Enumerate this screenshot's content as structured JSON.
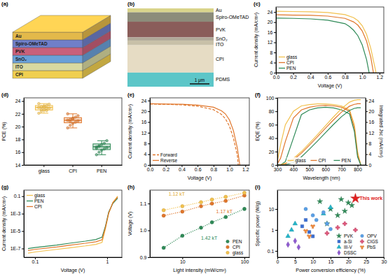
{
  "chart_data": [
    {
      "type": "diagram",
      "title": "(a)",
      "layers": [
        "Au",
        "Spiro-OMeTAD",
        "PVK",
        "SnO₂",
        "ITO",
        "CPI"
      ],
      "colors": [
        "#e3b94a",
        "#6f7fc9",
        "#c9607a",
        "#6aa0d8",
        "#d9d9a0",
        "#f0cf50"
      ]
    },
    {
      "type": "image",
      "title": "(b)",
      "layers": [
        "Au",
        "Spiro-OMeTAD",
        "PVK",
        "SnO₂",
        "ITO",
        "CPI",
        "PDMS"
      ],
      "colors": [
        "#d9d48a",
        "#8c8c7a",
        "#8a5d5a",
        "#b0a898",
        "#c8c0a8",
        "#e6dcc4",
        "#5cc6c8"
      ],
      "scale_bar": "1 μm"
    },
    {
      "type": "line",
      "title": "(c)",
      "xlabel": "Voltage (V)",
      "ylabel": "Current density (mA/cm²)",
      "xlim": [
        0,
        1.25
      ],
      "ylim": [
        0,
        26
      ],
      "xticks": [
        {
          "value": 0,
          "label": "0.0"
        },
        0.2,
        0.4,
        0.6,
        0.8,
        {
          "value": 1,
          "label": "1.0"
        },
        1.2
      ],
      "yticks": [
        0,
        4,
        8,
        12,
        16,
        20,
        24
      ],
      "legend": "lower left",
      "series": [
        {
          "name": "glass",
          "color": "#f2c14e",
          "x": [
            0,
            0.2,
            0.4,
            0.6,
            0.8,
            0.9,
            0.95,
            1.0,
            1.05,
            1.1,
            1.16
          ],
          "values": [
            24.3,
            24.2,
            24.1,
            23.8,
            23.0,
            21.8,
            20.6,
            18.6,
            15.2,
            9.5,
            0
          ]
        },
        {
          "name": "CPI",
          "color": "#e0762b",
          "x": [
            0,
            0.2,
            0.4,
            0.6,
            0.8,
            0.9,
            0.95,
            1.0,
            1.05,
            1.1,
            1.13
          ],
          "values": [
            22.9,
            22.8,
            22.7,
            22.4,
            21.5,
            20.1,
            18.8,
            16.5,
            12.5,
            6.0,
            0
          ]
        },
        {
          "name": "PEN",
          "color": "#2f8a57",
          "x": [
            0,
            0.2,
            0.4,
            0.6,
            0.8,
            0.85,
            0.9,
            0.95,
            1.0,
            1.05,
            1.08
          ],
          "values": [
            21.6,
            21.5,
            21.3,
            20.8,
            19.4,
            18.3,
            16.8,
            14.6,
            11.0,
            5.2,
            0
          ]
        }
      ]
    },
    {
      "type": "box",
      "title": "(d)",
      "ylabel": "PCE (%)",
      "categories": [
        "glass",
        "CPI",
        "PEN"
      ],
      "colors": [
        "#f2c14e",
        "#e0762b",
        "#2f8a57"
      ],
      "ylim": [
        14,
        24.5
      ],
      "yticks": [
        14,
        16,
        18,
        20,
        22,
        24
      ],
      "values": [
        [
          22.1,
          22.4,
          22.6,
          22.8,
          22.9,
          23.0,
          23.1,
          23.2,
          23.3,
          23.5,
          23.6,
          22.7,
          23.0,
          22.5
        ],
        [
          19.8,
          20.2,
          20.5,
          20.7,
          20.9,
          21.0,
          21.1,
          21.3,
          21.5,
          21.7,
          22.0,
          20.8,
          21.2
        ],
        [
          15.6,
          16.0,
          16.3,
          16.5,
          16.7,
          16.8,
          17.0,
          17.2,
          17.4,
          17.8,
          16.6,
          16.9
        ]
      ],
      "stats": [
        {
          "min": 22.1,
          "q1": 22.6,
          "median": 23.0,
          "q3": 23.3,
          "max": 23.6
        },
        {
          "min": 19.8,
          "q1": 20.6,
          "median": 21.0,
          "q3": 21.4,
          "max": 22.0
        },
        {
          "min": 15.6,
          "q1": 16.4,
          "median": 16.85,
          "q3": 17.3,
          "max": 17.8
        }
      ]
    },
    {
      "type": "line",
      "title": "(e)",
      "xlabel": "Voltage (V)",
      "ylabel": "Current density (mA/cm²)",
      "xlim": [
        0,
        1.25
      ],
      "ylim": [
        0,
        25
      ],
      "xticks": [
        {
          "value": 0,
          "label": "0.0"
        },
        0.2,
        0.4,
        0.6,
        0.8,
        {
          "value": 1,
          "label": "1.0"
        },
        1.2
      ],
      "yticks": [
        0,
        4,
        8,
        12,
        16,
        20,
        24
      ],
      "legend": "lower left",
      "series": [
        {
          "name": "Forward",
          "color": "#e0762b",
          "line_style": "dashed",
          "x": [
            0,
            0.2,
            0.4,
            0.6,
            0.8,
            0.9,
            0.95,
            1.0,
            1.05,
            1.1,
            1.11
          ],
          "values": [
            22.7,
            22.6,
            22.4,
            21.9,
            20.6,
            18.8,
            17.2,
            14.5,
            10.0,
            3.5,
            0
          ]
        },
        {
          "name": "Reverse",
          "color": "#e0762b",
          "line_style": "solid",
          "x": [
            0,
            0.2,
            0.4,
            0.6,
            0.8,
            0.9,
            0.95,
            1.0,
            1.05,
            1.1,
            1.13
          ],
          "values": [
            22.8,
            22.7,
            22.6,
            22.3,
            21.5,
            20.2,
            19.0,
            16.8,
            12.8,
            6.2,
            0
          ]
        }
      ]
    },
    {
      "type": "line",
      "title": "(f)",
      "xlabel": "Wavelength (nm)",
      "ylabel": "EQE (%)",
      "y2label": "Integrated Jsc (mA/cm²)",
      "xlim": [
        300,
        850
      ],
      "ylim": [
        0,
        100
      ],
      "y2lim": [
        0,
        25
      ],
      "xticks": [
        300,
        400,
        500,
        600,
        700,
        800
      ],
      "yticks": [
        0,
        20,
        40,
        60,
        80,
        100
      ],
      "y2ticks": [
        0,
        4,
        8,
        12,
        16,
        20,
        24
      ],
      "legend": "lower center",
      "x": [
        300,
        320,
        350,
        400,
        450,
        500,
        550,
        600,
        650,
        700,
        750,
        780,
        800,
        820
      ],
      "series": [
        {
          "name": "glass",
          "color": "#f2c14e",
          "values": [
            5,
            30,
            60,
            80,
            88,
            90,
            91,
            91,
            90,
            88,
            82,
            60,
            20,
            0
          ]
        },
        {
          "name": "CPI",
          "color": "#e0762b",
          "values": [
            2,
            10,
            35,
            70,
            82,
            86,
            88,
            89,
            88,
            86,
            80,
            55,
            15,
            0
          ]
        },
        {
          "name": "PEN",
          "color": "#2f8a57",
          "values": [
            0,
            0,
            5,
            40,
            75,
            82,
            85,
            86,
            85,
            82,
            76,
            50,
            12,
            0
          ]
        },
        {
          "color": "#f2c14e",
          "axis": "y2",
          "values": [
            0,
            0.1,
            0.6,
            2.4,
            5.0,
            8.1,
            11.3,
            14.6,
            17.9,
            21.0,
            23.4,
            24.1,
            24.3,
            24.3
          ]
        },
        {
          "color": "#e0762b",
          "axis": "y2",
          "values": [
            0,
            0.05,
            0.4,
            1.9,
            4.4,
            7.4,
            10.5,
            13.7,
            16.8,
            19.7,
            21.9,
            22.6,
            22.8,
            22.8
          ]
        },
        {
          "color": "#2f8a57",
          "axis": "y2",
          "values": [
            0,
            0,
            0.05,
            0.9,
            3.0,
            5.9,
            8.9,
            12.0,
            15.1,
            18.0,
            20.3,
            21.1,
            21.3,
            21.3
          ]
        }
      ]
    },
    {
      "type": "line",
      "title": "(g)",
      "xlabel": "Voltage (V)",
      "ylabel": "Current density (mA/cm²)",
      "log": true,
      "xlim": [
        0.07,
        1.6
      ],
      "ylim": [
        1e-08,
        0.5
      ],
      "xticks": [
        0.1,
        1
      ],
      "yticks": [
        {
          "value": 1e-07,
          "label": "1E-7"
        },
        {
          "value": 1e-05,
          "label": "1E-5"
        },
        {
          "value": 0.001,
          "label": "1E-3"
        },
        0.1
      ],
      "legend": "upper left",
      "x": [
        0.08,
        0.1,
        0.2,
        0.3,
        0.5,
        0.7,
        0.85,
        0.95,
        1.05,
        1.2,
        1.4
      ],
      "series": [
        {
          "name": "glass",
          "color": "#f2c14e",
          "values": [
            3e-08,
            4e-08,
            8e-08,
            1.2e-07,
            2e-07,
            3e-07,
            5e-07,
            2e-05,
            0.001,
            0.02,
            0.1
          ]
        },
        {
          "name": "PEN",
          "color": "#2f8a57",
          "values": [
            1e-07,
            1.3e-07,
            2.5e-07,
            4e-07,
            7e-07,
            1.1e-06,
            2e-06,
            4e-05,
            0.0015,
            0.015,
            0.06
          ]
        },
        {
          "name": "CPI",
          "color": "#e0762b",
          "values": [
            6e-08,
            8e-08,
            1.5e-07,
            2.4e-07,
            4e-07,
            6e-07,
            1e-06,
            3e-05,
            0.0012,
            0.018,
            0.08
          ]
        }
      ]
    },
    {
      "type": "scatter",
      "title": "(h)",
      "xlabel": "Light intensity (mW/cm²)",
      "ylabel": "Voltage (V)",
      "log": "x",
      "xlim": [
        3,
        120
      ],
      "ylim": [
        0.9,
        1.15
      ],
      "xticks": [
        10,
        100
      ],
      "yticks": [
        0.9,
        {
          "value": 1,
          "label": "1.0"
        },
        1.1
      ],
      "legend": "lower right",
      "x": [
        5,
        10,
        20,
        30,
        50,
        100
      ],
      "series": [
        {
          "name": "PEN",
          "color": "#2f8a57",
          "marker": "circle",
          "line_style": "dotted",
          "values": [
            0.935,
            0.98,
            1.01,
            1.03,
            1.05,
            1.08
          ]
        },
        {
          "name": "CPI",
          "color": "#e0762b",
          "marker": "circle",
          "line_style": "dotted",
          "values": [
            1.055,
            1.07,
            1.09,
            1.1,
            1.11,
            1.13
          ]
        },
        {
          "name": "glass",
          "color": "#f2c14e",
          "marker": "circle",
          "line_style": "dotted",
          "values": [
            1.075,
            1.09,
            1.105,
            1.115,
            1.125,
            1.14
          ]
        }
      ],
      "annotations": [
        {
          "text": "1.12 kT",
          "x": 6,
          "y": 1.13,
          "color": "#e0a82e"
        },
        {
          "text": "1.17 kT",
          "x": 35,
          "y": 1.065,
          "color": "#e0762b"
        },
        {
          "text": "1.42 kT",
          "x": 20,
          "y": 0.965,
          "color": "#2f8a57"
        }
      ]
    },
    {
      "type": "scatter",
      "title": "(i)",
      "xlabel": "Power conversion efficiency (%)",
      "ylabel": "Specific power (W/g)",
      "log": "y",
      "xlim": [
        0,
        30
      ],
      "ylim": [
        0.05,
        80
      ],
      "xticks": [
        0,
        5,
        10,
        15,
        20,
        25,
        30
      ],
      "yticks": [
        0.1,
        1,
        10
      ],
      "legend": "lower right",
      "series": [
        {
          "name": "PVK",
          "color": "#2f8a57",
          "marker": "star",
          "x": [
            12,
            14,
            15,
            17,
            18,
            19,
            20,
            21
          ],
          "values": [
            23,
            2,
            10,
            5,
            29,
            8,
            20,
            15
          ]
        },
        {
          "name": "a-Si",
          "color": "#3b6fd4",
          "marker": "square",
          "x": [
            7,
            8,
            9,
            10
          ],
          "values": [
            1.5,
            3,
            0.8,
            0.5
          ]
        },
        {
          "name": "III-V",
          "color": "#25b5c9",
          "marker": "triangle",
          "x": [
            3,
            4,
            5,
            13,
            15
          ],
          "values": [
            0.5,
            1,
            2,
            6,
            12
          ]
        },
        {
          "name": "DSSC",
          "color": "#8e5bd0",
          "marker": "diamond",
          "x": [
            3,
            5,
            6
          ],
          "values": [
            0.2,
            0.3,
            0.15
          ]
        },
        {
          "name": "OPV",
          "color": "#5aa0e6",
          "marker": "circle",
          "x": [
            8,
            10,
            11,
            13,
            14,
            15
          ],
          "values": [
            10,
            5,
            3,
            7,
            2,
            1.1
          ]
        },
        {
          "name": "CIGS",
          "color": "#e0557a",
          "marker": "cross",
          "x": [
            14,
            17,
            19,
            22
          ],
          "values": [
            0.7,
            1.3,
            2,
            1.0
          ]
        },
        {
          "name": "PbS",
          "color": "#f08a3c",
          "marker": "wye",
          "x": [
            8,
            9,
            10
          ],
          "values": [
            0.9,
            0.5,
            1.5
          ]
        }
      ],
      "annotations": [
        {
          "text": "This work",
          "x": 22,
          "y": 32,
          "color": "#e02020",
          "marker": "star"
        }
      ]
    }
  ]
}
